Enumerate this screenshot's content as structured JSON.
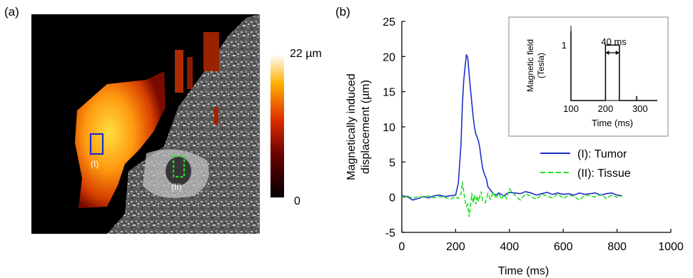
{
  "panel_a": {
    "label": "(a)",
    "colorbar": {
      "max_label": "22 µm",
      "min_label": "0"
    },
    "roi_labels": [
      "(I)",
      "(II)"
    ],
    "colors": {
      "roi_tumor": "#1a2fc8",
      "roi_tissue": "#22dd22"
    }
  },
  "panel_b": {
    "label": "(b)"
  },
  "chart_data": [
    {
      "type": "line",
      "xlabel": "Time (ms)",
      "ylabel": "Magnetically induced displacement (µm)",
      "ylabel_lines": [
        "Magnetically induced",
        "displacement (µm)"
      ],
      "xlim": [
        0,
        1000
      ],
      "ylim": [
        -5,
        25
      ],
      "xticks": [
        0,
        200,
        400,
        600,
        800,
        1000
      ],
      "yticks": [
        -5,
        0,
        5,
        10,
        15,
        20,
        25
      ],
      "grid": false,
      "legend_position": "lower-right",
      "series": [
        {
          "name": "(I): Tumor",
          "color": "#1f2fcc",
          "style": "solid",
          "x": [
            0,
            20,
            40,
            60,
            80,
            100,
            120,
            140,
            160,
            180,
            200,
            210,
            220,
            225,
            230,
            235,
            240,
            245,
            250,
            255,
            260,
            265,
            270,
            275,
            280,
            285,
            290,
            295,
            300,
            305,
            310,
            315,
            320,
            330,
            340,
            350,
            360,
            370,
            380,
            390,
            400,
            420,
            440,
            460,
            480,
            500,
            520,
            540,
            560,
            580,
            600,
            620,
            640,
            660,
            680,
            700,
            720,
            740,
            760,
            780,
            800,
            820
          ],
          "values": [
            0.2,
            0.1,
            -0.4,
            -0.2,
            0.1,
            -0.1,
            0.2,
            0.3,
            0.1,
            0.2,
            0.3,
            2.0,
            7.5,
            13.0,
            16.5,
            18.5,
            20.3,
            19.8,
            17.5,
            15.5,
            13.5,
            11.5,
            10.0,
            9.0,
            8.5,
            8.0,
            7.0,
            5.5,
            4.2,
            3.5,
            3.0,
            2.5,
            1.5,
            1.0,
            0.5,
            0.3,
            0.6,
            0.4,
            0.2,
            0.5,
            0.7,
            0.6,
            0.5,
            0.8,
            0.6,
            0.3,
            0.5,
            0.7,
            0.4,
            0.6,
            0.4,
            0.5,
            0.3,
            0.6,
            0.4,
            0.5,
            0.6,
            0.3,
            0.5,
            0.6,
            0.3,
            0.2
          ]
        },
        {
          "name": "(II): Tissue",
          "color": "#22dd22",
          "style": "dashed",
          "x": [
            0,
            20,
            40,
            60,
            80,
            100,
            120,
            140,
            160,
            180,
            200,
            210,
            220,
            225,
            230,
            235,
            240,
            245,
            250,
            255,
            260,
            265,
            270,
            275,
            280,
            285,
            290,
            295,
            300,
            310,
            320,
            330,
            340,
            350,
            360,
            370,
            380,
            390,
            400,
            420,
            440,
            460,
            480,
            500,
            520,
            540,
            560,
            580,
            600,
            620,
            640,
            660,
            680,
            700,
            720,
            740,
            760,
            780,
            800,
            820
          ],
          "values": [
            0.0,
            0.2,
            -0.2,
            0.1,
            0.0,
            0.2,
            -0.1,
            0.1,
            0.0,
            -0.3,
            0.1,
            -0.2,
            0.5,
            2.2,
            0.8,
            -0.5,
            -1.3,
            -1.0,
            -2.8,
            -1.5,
            0.6,
            -0.8,
            0.3,
            -1.0,
            0.2,
            -0.6,
            0.1,
            0.8,
            -0.4,
            -0.8,
            0.5,
            -0.3,
            0.7,
            -0.2,
            0.6,
            -0.3,
            0.4,
            -0.2,
            1.2,
            0.3,
            -0.4,
            0.5,
            0.1,
            -0.3,
            0.4,
            0.2,
            -0.1,
            0.5,
            -0.2,
            0.3,
            0.1,
            -0.4,
            0.3,
            0.2,
            0.0,
            0.4,
            -0.2,
            0.3,
            0.0,
            0.2
          ]
        }
      ]
    },
    {
      "type": "line",
      "title": "",
      "xlabel": "Time (ms)",
      "ylabel": "Magnetic field (Tesla)",
      "ylabel_lines": [
        "Magnetic field",
        "(Tesla)"
      ],
      "xlim": [
        100,
        350
      ],
      "ylim": [
        0,
        1.35
      ],
      "xticks": [
        100,
        200,
        300
      ],
      "yticks": [
        1
      ],
      "annotation": "40 ms",
      "series": [
        {
          "name": "",
          "color": "#000000",
          "x": [
            100,
            100,
            100,
            200,
            200,
            240,
            240,
            290,
            290,
            290,
            350
          ],
          "values": [
            0,
            1.25,
            0,
            0,
            1,
            1,
            0,
            0,
            0.08,
            0,
            0
          ]
        }
      ]
    }
  ]
}
